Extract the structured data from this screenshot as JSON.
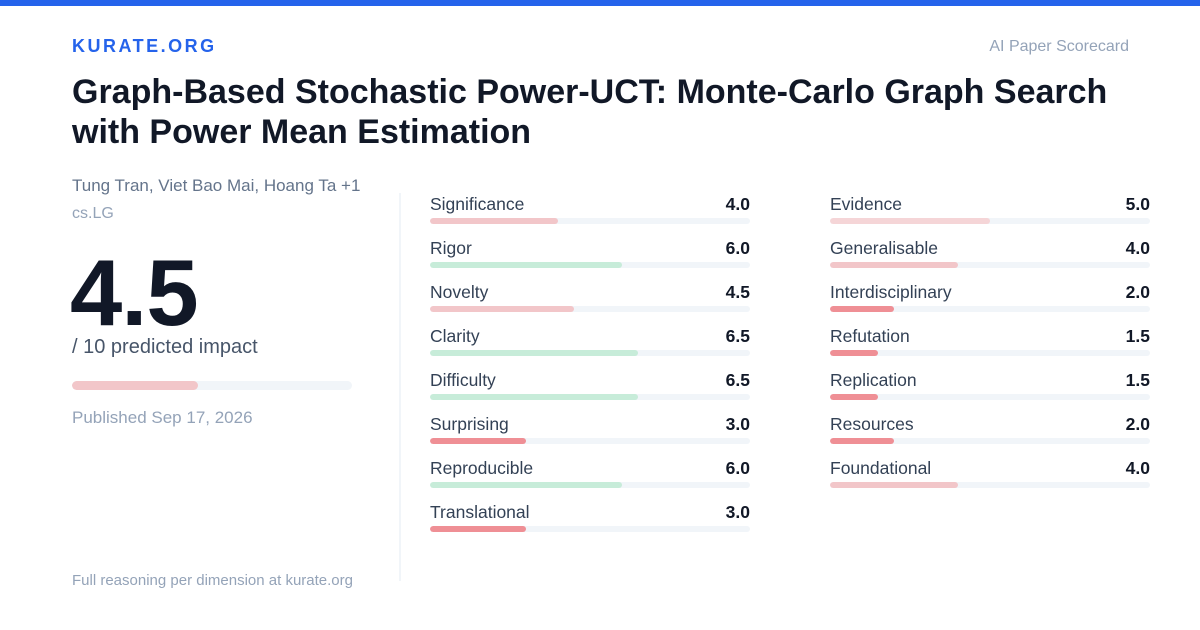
{
  "header": {
    "brand": "KURATE.ORG",
    "tagline": "AI Paper Scorecard",
    "accent_color": "#2563eb"
  },
  "paper": {
    "title": "Graph-Based Stochastic Power-UCT: Monte-Carlo Graph Search with Power Mean Estimation",
    "authors": "Tung Tran, Viet Bao Mai, Hoang Ta +1",
    "category": "cs.LG",
    "score": "4.5",
    "score_value": 4.5,
    "score_max": 10,
    "score_caption": "/ 10 predicted impact",
    "score_bar_color": "#f2c6c9",
    "published": "Published Sep 17, 2026"
  },
  "footer": {
    "text": "Full reasoning per dimension at kurate.org"
  },
  "colors": {
    "low": "#ef8f95",
    "mid": "#f2c6c9",
    "high": "#c7ecd9",
    "track": "#f1f5f9"
  },
  "dimensions": {
    "left": [
      {
        "label": "Significance",
        "value": "4.0",
        "score": 4.0,
        "color": "#f2c6c9"
      },
      {
        "label": "Rigor",
        "value": "6.0",
        "score": 6.0,
        "color": "#c7ecd9"
      },
      {
        "label": "Novelty",
        "value": "4.5",
        "score": 4.5,
        "color": "#f2c6c9"
      },
      {
        "label": "Clarity",
        "value": "6.5",
        "score": 6.5,
        "color": "#c7ecd9"
      },
      {
        "label": "Difficulty",
        "value": "6.5",
        "score": 6.5,
        "color": "#c7ecd9"
      },
      {
        "label": "Surprising",
        "value": "3.0",
        "score": 3.0,
        "color": "#ef8f95"
      },
      {
        "label": "Reproducible",
        "value": "6.0",
        "score": 6.0,
        "color": "#c7ecd9"
      },
      {
        "label": "Translational",
        "value": "3.0",
        "score": 3.0,
        "color": "#ef8f95"
      }
    ],
    "right": [
      {
        "label": "Evidence",
        "value": "5.0",
        "score": 5.0,
        "color": "#f5d5d7"
      },
      {
        "label": "Generalisable",
        "value": "4.0",
        "score": 4.0,
        "color": "#f2c6c9"
      },
      {
        "label": "Interdisciplinary",
        "value": "2.0",
        "score": 2.0,
        "color": "#ef8f95"
      },
      {
        "label": "Refutation",
        "value": "1.5",
        "score": 1.5,
        "color": "#ef8f95"
      },
      {
        "label": "Replication",
        "value": "1.5",
        "score": 1.5,
        "color": "#ef8f95"
      },
      {
        "label": "Resources",
        "value": "2.0",
        "score": 2.0,
        "color": "#ef8f95"
      },
      {
        "label": "Foundational",
        "value": "4.0",
        "score": 4.0,
        "color": "#f2c6c9"
      }
    ]
  }
}
